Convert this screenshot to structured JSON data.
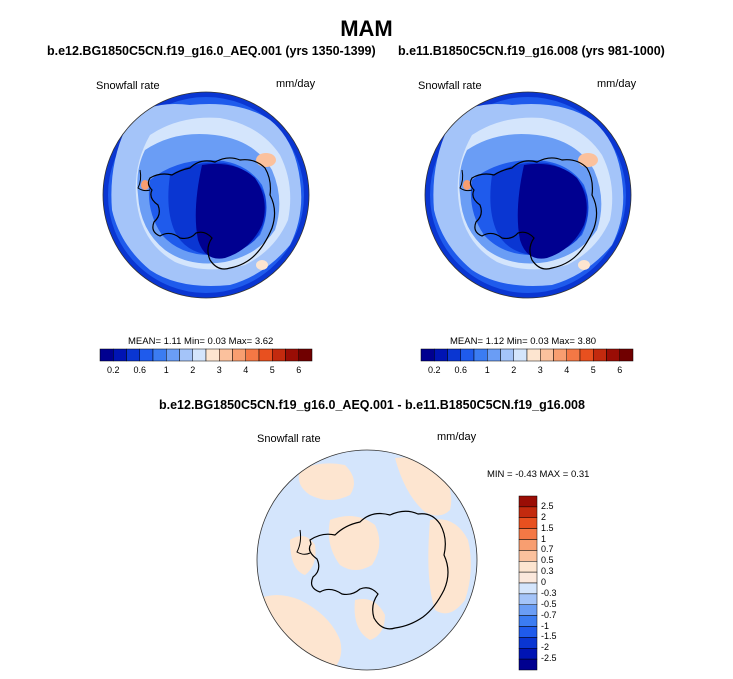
{
  "main_title": "MAM",
  "panel_left": {
    "case": "b.e12.BG1850C5CN.f19_g16.0_AEQ.001 (yrs 1350-1399)",
    "variable": "Snowfall rate",
    "units": "mm/day",
    "stats": "MEAN=  1.11  Min=  0.03  Max=  3.62"
  },
  "panel_right": {
    "case": "b.e11.B1850C5CN.f19_g16.008 (yrs 981-1000)",
    "variable": "Snowfall rate",
    "units": "mm/day",
    "stats": "MEAN=  1.12  Min=  0.03  Max=  3.80"
  },
  "panel_diff": {
    "case": "b.e12.BG1850C5CN.f19_g16.0_AEQ.001 - b.e11.B1850C5CN.f19_g16.008",
    "variable": "Snowfall rate",
    "units": "mm/day",
    "stats": "MIN =  -0.43 MAX =   0.31"
  },
  "chart_data": [
    {
      "type": "heatmap",
      "projection": "south polar stereographic",
      "title": "b.e12.BG1850C5CN.f19_g16.0_AEQ.001 (yrs 1350-1399)",
      "colorbar": {
        "orientation": "horizontal",
        "ticks": [
          "0.2",
          "0.6",
          "1",
          "2",
          "3",
          "4",
          "5",
          "6"
        ],
        "colors": [
          "#000090",
          "#0014b4",
          "#0a36d2",
          "#1f5bec",
          "#3b7cf2",
          "#6a9df5",
          "#a4c4f9",
          "#d4e5fc",
          "#fde5d0",
          "#fbc19d",
          "#f89e70",
          "#f47845",
          "#e8501f",
          "#c32a0e",
          "#9a0d05",
          "#700000"
        ]
      },
      "mean": 1.11,
      "min": 0.03,
      "max": 3.62
    },
    {
      "type": "heatmap",
      "projection": "south polar stereographic",
      "title": "b.e11.B1850C5CN.f19_g16.008 (yrs 981-1000)",
      "colorbar": {
        "orientation": "horizontal",
        "ticks": [
          "0.2",
          "0.6",
          "1",
          "2",
          "3",
          "4",
          "5",
          "6"
        ],
        "colors": [
          "#000090",
          "#0014b4",
          "#0a36d2",
          "#1f5bec",
          "#3b7cf2",
          "#6a9df5",
          "#a4c4f9",
          "#d4e5fc",
          "#fde5d0",
          "#fbc19d",
          "#f89e70",
          "#f47845",
          "#e8501f",
          "#c32a0e",
          "#9a0d05",
          "#700000"
        ]
      },
      "mean": 1.12,
      "min": 0.03,
      "max": 3.8
    },
    {
      "type": "heatmap",
      "projection": "south polar stereographic",
      "title": "b.e12.BG1850C5CN.f19_g16.0_AEQ.001 - b.e11.B1850C5CN.f19_g16.008",
      "colorbar": {
        "orientation": "vertical",
        "ticks": [
          "2.5",
          "2",
          "1.5",
          "1",
          "0.7",
          "0.5",
          "0.3",
          "0",
          "-0.3",
          "-0.5",
          "-0.7",
          "-1",
          "-1.5",
          "-2",
          "-2.5"
        ],
        "colors": [
          "#9a0d05",
          "#c32a0e",
          "#e8501f",
          "#f47845",
          "#f89e70",
          "#fbc19d",
          "#fde5d0",
          "#fbe8dc",
          "#d4e5fc",
          "#a4c4f9",
          "#6a9df5",
          "#3b7cf2",
          "#1f5bec",
          "#0a36d2",
          "#0014b4",
          "#000090"
        ]
      },
      "min": -0.43,
      "max": 0.31
    }
  ]
}
